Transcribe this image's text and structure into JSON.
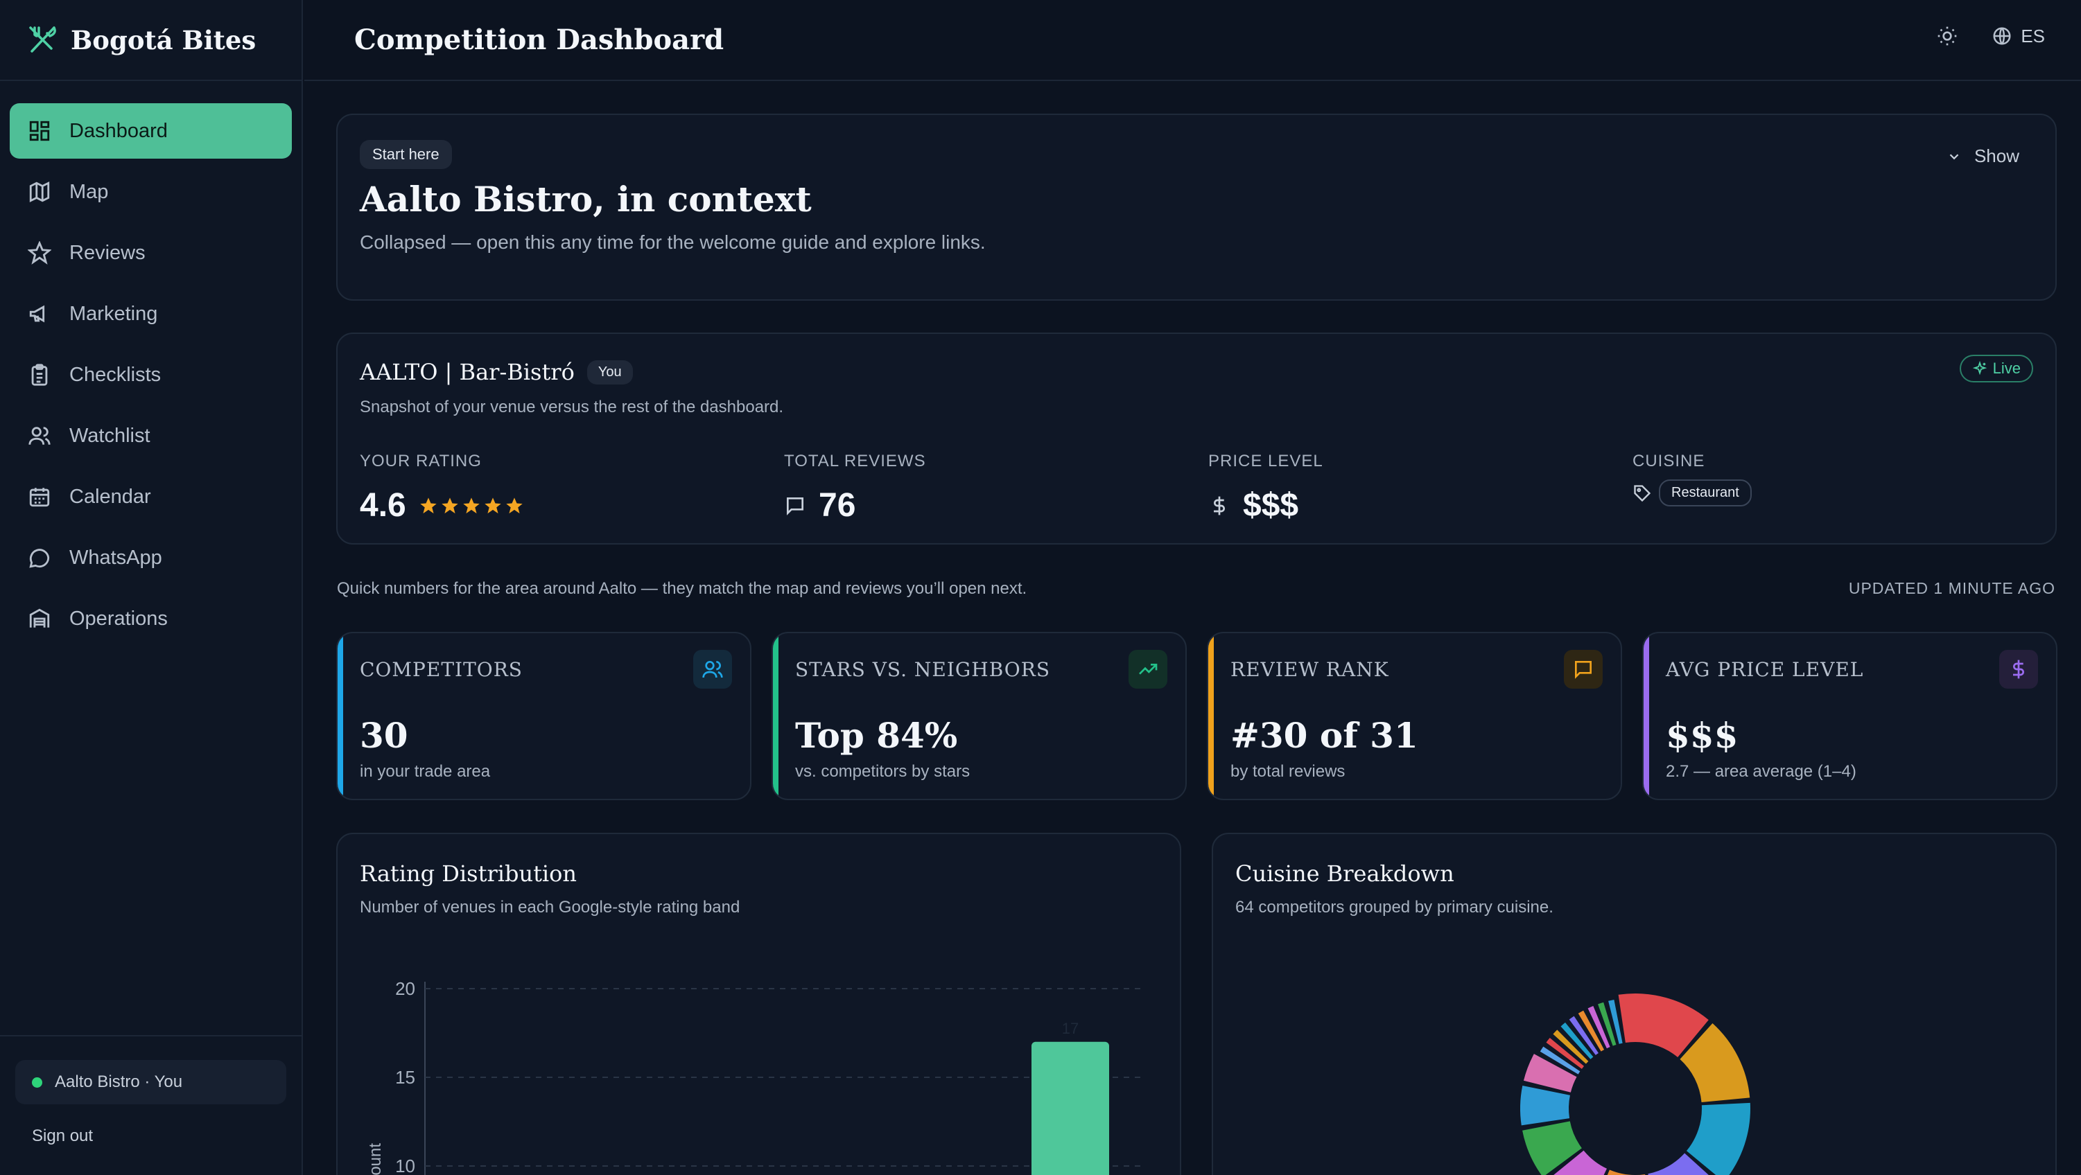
{
  "app": {
    "brand": "Bogotá Bites"
  },
  "sidebar": {
    "items": [
      {
        "label": "Dashboard",
        "icon": "dashboard-icon",
        "active": true
      },
      {
        "label": "Map",
        "icon": "map-icon"
      },
      {
        "label": "Reviews",
        "icon": "star-icon"
      },
      {
        "label": "Marketing",
        "icon": "megaphone-icon"
      },
      {
        "label": "Checklists",
        "icon": "clipboard-icon"
      },
      {
        "label": "Watchlist",
        "icon": "users-icon"
      },
      {
        "label": "Calendar",
        "icon": "calendar-icon"
      },
      {
        "label": "WhatsApp",
        "icon": "chat-icon"
      },
      {
        "label": "Operations",
        "icon": "warehouse-icon"
      }
    ],
    "venue_label": "Aalto Bistro · You",
    "sign_out": "Sign out"
  },
  "header": {
    "title": "Competition Dashboard",
    "language": "ES"
  },
  "intro": {
    "badge": "Start here",
    "title": "Aalto Bistro, in context",
    "subtitle": "Collapsed — open this any time for the welcome guide and explore links.",
    "toggle": "Show"
  },
  "venue": {
    "name": "AALTO | Bar-Bistró",
    "you_badge": "You",
    "subtitle": "Snapshot of your venue versus the rest of the dashboard.",
    "live": "Live",
    "metrics": {
      "rating_label": "YOUR RATING",
      "rating_value": "4.6",
      "stars": 5,
      "reviews_label": "TOTAL REVIEWS",
      "reviews_value": "76",
      "price_label": "PRICE LEVEL",
      "price_value": "$$$",
      "cuisine_label": "CUISINE",
      "cuisine_value": "Restaurant"
    }
  },
  "quick_note": "Quick numbers for the area around Aalto — they match the map and reviews you’ll open next.",
  "updated": "UPDATED 1 MINUTE AGO",
  "kpis": [
    {
      "title": "COMPETITORS",
      "value": "30",
      "sub": "in your trade area",
      "color": "#1ea7e8",
      "icon": "users-icon"
    },
    {
      "title": "STARS VS. NEIGHBORS",
      "value": "Top 84%",
      "sub": "vs. competitors by stars",
      "color": "#23c18a",
      "icon": "trending-up-icon"
    },
    {
      "title": "REVIEW RANK",
      "value": "#30 of 31",
      "sub": "by total reviews",
      "color": "#f0a21c",
      "icon": "message-icon"
    },
    {
      "title": "AVG PRICE LEVEL",
      "value": "$$$",
      "sub": "2.7 — area average (1–4)",
      "color": "#9b6cf0",
      "icon": "dollar-icon"
    }
  ],
  "rating_chart": {
    "title": "Rating Distribution",
    "subtitle": "Number of venues in each Google-style rating band"
  },
  "cuisine_chart": {
    "title": "Cuisine Breakdown",
    "subtitle": "64 competitors grouped by primary cuisine."
  },
  "chart_data": [
    {
      "type": "bar",
      "title": "Rating Distribution",
      "ylabel": "Count",
      "ylim": [
        0,
        20
      ],
      "yticks": [
        20,
        15,
        10
      ],
      "bars": [
        {
          "value": 17,
          "label": "17",
          "color": "#4fc79a"
        }
      ],
      "grid": true
    },
    {
      "type": "pie",
      "title": "Cuisine Breakdown",
      "total": 64,
      "colors": [
        "#e0474c",
        "#d99a1e",
        "#1f9ec9",
        "#7b6df0",
        "#e98a2e",
        "#c965d6",
        "#3aa84f",
        "#2f9bd6",
        "#d96fb0",
        "#5aa0e8"
      ]
    }
  ]
}
